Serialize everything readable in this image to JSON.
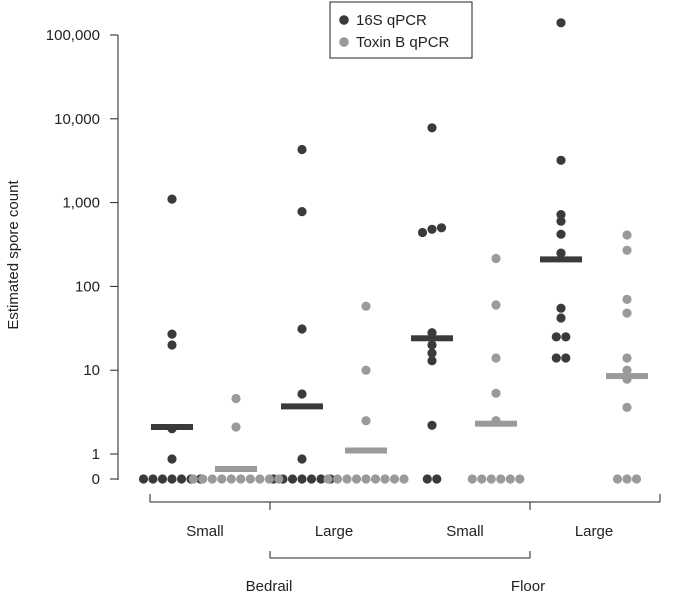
{
  "chart_data": {
    "type": "scatter",
    "ylabel": "Estimated spore count",
    "yscale": "log (zero shown at baseline)",
    "y_ticks": [
      "0",
      "1",
      "10",
      "100",
      "1,000",
      "10,000",
      "100,000"
    ],
    "groups": [
      "Bedrail",
      "Floor"
    ],
    "categories": [
      "Small",
      "Large",
      "Small",
      "Large"
    ],
    "legend": {
      "position": "top",
      "entries": [
        "16S qPCR",
        "Toxin B qPCR"
      ]
    },
    "colors": {
      "16S qPCR": "#3a3a3a",
      "Toxin B qPCR": "#9a9a9a"
    },
    "series": [
      {
        "name": "16S qPCR",
        "points": [
          [
            1100,
            27,
            20,
            2,
            0.8,
            0,
            0,
            0,
            0,
            0,
            0,
            0
          ],
          [
            4300,
            780,
            31,
            5.2,
            0.8,
            0,
            0,
            0,
            0,
            0,
            0,
            0
          ],
          [
            7800,
            500,
            480,
            440,
            28,
            20,
            16,
            13,
            2.2,
            0,
            0
          ],
          [
            140000,
            3200,
            720,
            600,
            420,
            250,
            55,
            42,
            25,
            25,
            14,
            14
          ]
        ],
        "medians": [
          2.1,
          3.7,
          24,
          210
        ]
      },
      {
        "name": "Toxin B qPCR",
        "points": [
          [
            4.6,
            2.1,
            0,
            0,
            0,
            0,
            0,
            0,
            0,
            0,
            0,
            0
          ],
          [
            58,
            10,
            2.5,
            0,
            0,
            0,
            0,
            0,
            0,
            0,
            0,
            0
          ],
          [
            215,
            60,
            14,
            5.3,
            2.5,
            0,
            0,
            0,
            0,
            0,
            0
          ],
          [
            410,
            270,
            70,
            48,
            14,
            10,
            7.8,
            3.6,
            0,
            0,
            0
          ]
        ],
        "medians": [
          0.4,
          1.1,
          2.3,
          8.5
        ]
      }
    ]
  }
}
